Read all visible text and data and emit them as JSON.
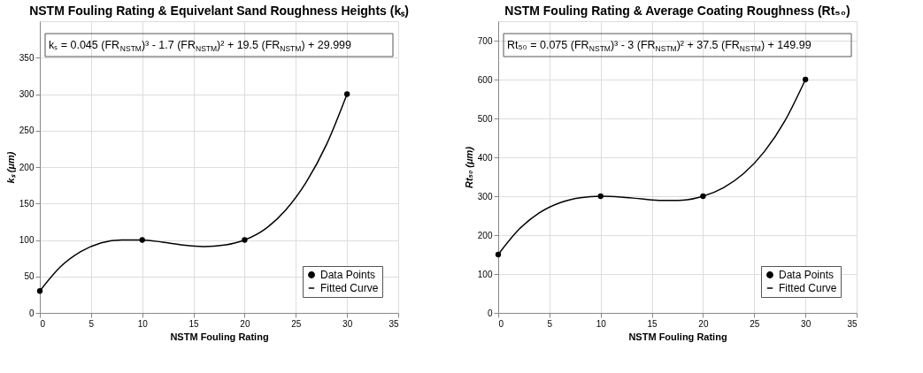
{
  "chart_data": [
    {
      "type": "scatter",
      "title": "NSTM Fouling Rating & Equivelant Sand Roughness Heights (kₛ)",
      "xlabel": "NSTM Fouling Rating",
      "ylabel": "kₛ (μm)",
      "annotations": [
        "kₛ = 0.045 (FR$_{NSTM}$)³ - 1.7 (FR$_{NSTM}$)² + 19.5 (FR$_{NSTM}$) + 29.999"
      ],
      "xlim": [
        0,
        35
      ],
      "xticks": [
        0,
        5,
        10,
        15,
        20,
        25,
        30,
        35
      ],
      "ylim": [
        0,
        400
      ],
      "yticks": [
        0,
        50,
        100,
        150,
        200,
        250,
        300,
        350
      ],
      "grid": true,
      "legend": "bottom right",
      "series": [
        {
          "name": "Data Points",
          "type": "scatter",
          "marker": "circle",
          "color": "#000000",
          "x": [
            0,
            10,
            20,
            30
          ],
          "values": [
            30,
            100,
            100,
            300
          ]
        },
        {
          "name": "Fitted Curve",
          "type": "line",
          "marker": "none",
          "line_style": "solid",
          "color": "#000000",
          "x": [
            0,
            2,
            4,
            6,
            8,
            10,
            12,
            14,
            16,
            18,
            20,
            22,
            24,
            26,
            28,
            30
          ],
          "values": [
            30,
            63,
            84,
            96,
            100,
            100,
            97,
            93,
            91,
            93,
            100,
            115,
            141,
            179,
            231,
            300
          ]
        }
      ]
    },
    {
      "type": "scatter",
      "title": "NSTM Fouling Rating & Average Coating Roughness (Rt₅₀)",
      "xlabel": "NSTM Fouling Rating",
      "ylabel": "Rt₅₀ (μm)",
      "annotations": [
        "Rt₅₀ = 0.075 (FR$_{NSTM}$)³ - 3 (FR$_{NSTM}$)² + 37.5 (FR$_{NSTM}$) + 149.99"
      ],
      "xlim": [
        0,
        35
      ],
      "xticks": [
        0,
        5,
        10,
        15,
        20,
        25,
        30,
        35
      ],
      "ylim": [
        0,
        750
      ],
      "yticks": [
        0,
        100,
        200,
        300,
        400,
        500,
        600,
        700
      ],
      "grid": true,
      "legend": "bottom right",
      "series": [
        {
          "name": "Data Points",
          "type": "scatter",
          "marker": "circle",
          "color": "#000000",
          "x": [
            0,
            10,
            20,
            30
          ],
          "values": [
            150,
            300,
            300,
            600
          ]
        },
        {
          "name": "Fitted Curve",
          "type": "line",
          "marker": "none",
          "line_style": "solid",
          "color": "#000000",
          "x": [
            0,
            2,
            4,
            6,
            8,
            10,
            12,
            14,
            16,
            18,
            20,
            22,
            24,
            26,
            28,
            30
          ],
          "values": [
            150,
            214,
            257,
            283,
            296,
            300,
            298,
            293,
            289,
            290,
            300,
            322,
            359,
            415,
            494,
            600
          ]
        }
      ]
    }
  ]
}
